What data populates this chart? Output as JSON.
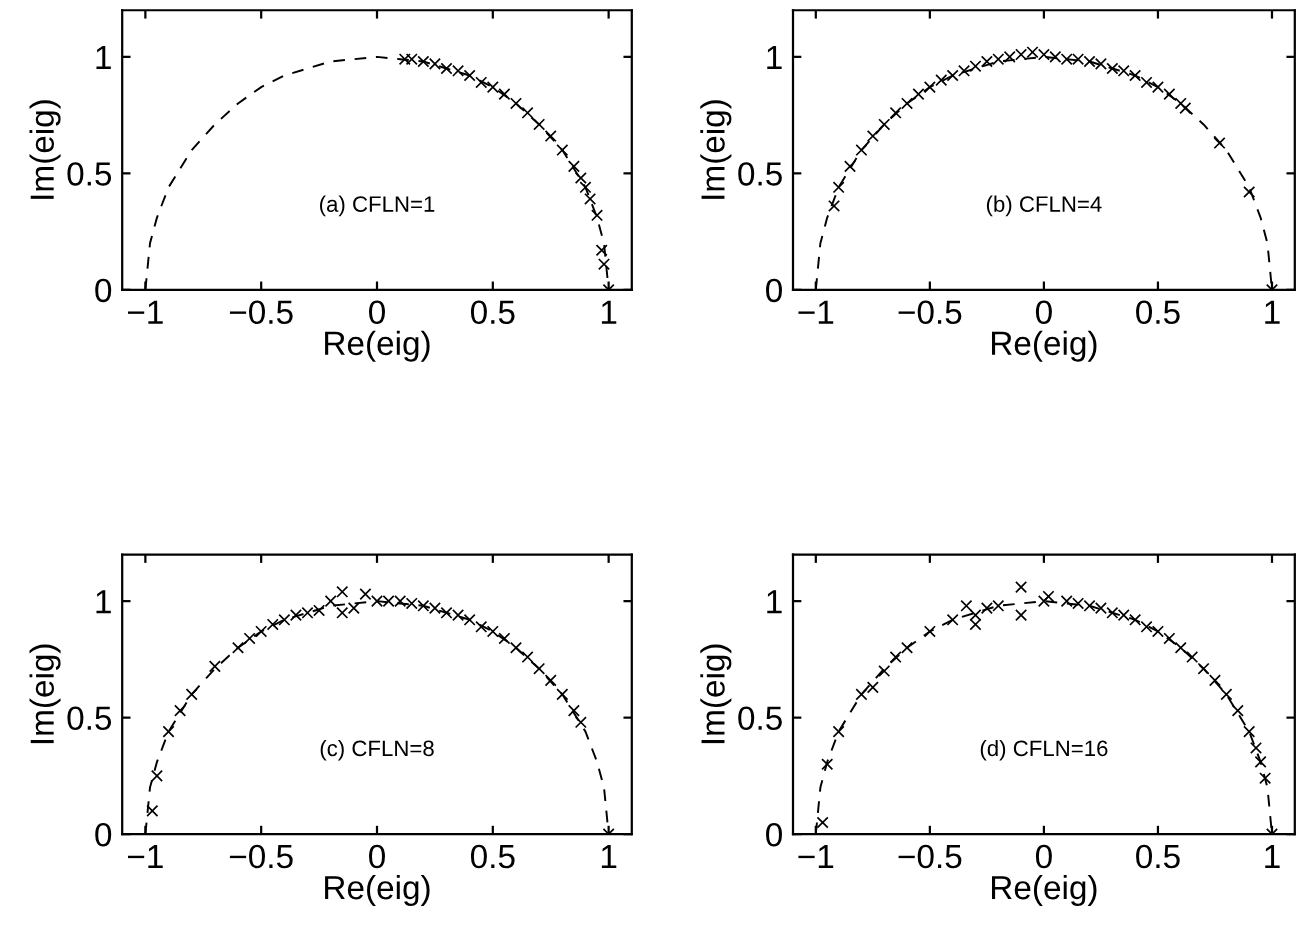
{
  "chart_data": [
    {
      "type": "scatter",
      "xlabel": "Re(eig)",
      "ylabel": "Im(eig)",
      "annotations": [
        "(a) CFLN=1"
      ],
      "xlim": [
        -1.1,
        1.1
      ],
      "ylim": [
        0,
        1.2
      ],
      "xticks": [
        -1,
        -0.5,
        0,
        0.5,
        1
      ],
      "yticks": [
        0,
        0.5,
        1
      ],
      "grid": false,
      "series": [
        {
          "type": "line",
          "line_style": "dashed",
          "marker": "none",
          "color": "#000000",
          "x": [
            -1,
            -0.98,
            -0.95,
            -0.9,
            -0.8,
            -0.7,
            -0.6,
            -0.5,
            -0.4,
            -0.3,
            -0.2,
            -0.1,
            0,
            0.1,
            0.2,
            0.3,
            0.4,
            0.5,
            0.6,
            0.7,
            0.8,
            0.9,
            0.95,
            0.98,
            1
          ],
          "values": [
            0,
            0.2,
            0.31,
            0.44,
            0.6,
            0.71,
            0.8,
            0.87,
            0.92,
            0.95,
            0.98,
            0.99,
            1,
            0.99,
            0.98,
            0.95,
            0.92,
            0.87,
            0.8,
            0.71,
            0.6,
            0.44,
            0.31,
            0.2,
            0
          ]
        },
        {
          "marker": "cross",
          "color": "#000000",
          "x": [
            0.12,
            0.15,
            0.2,
            0.25,
            0.3,
            0.35,
            0.4,
            0.45,
            0.5,
            0.55,
            0.6,
            0.65,
            0.7,
            0.75,
            0.8,
            0.85,
            0.88,
            0.9,
            0.92,
            0.95,
            0.97,
            0.98,
            1
          ],
          "values": [
            0.99,
            0.99,
            0.98,
            0.97,
            0.95,
            0.94,
            0.92,
            0.89,
            0.87,
            0.84,
            0.8,
            0.76,
            0.71,
            0.66,
            0.6,
            0.53,
            0.48,
            0.44,
            0.39,
            0.32,
            0.17,
            0.11,
            0
          ]
        }
      ]
    },
    {
      "type": "scatter",
      "xlabel": "Re(eig)",
      "ylabel": "Im(eig)",
      "annotations": [
        "(b) CFLN=4"
      ],
      "xlim": [
        -1.1,
        1.1
      ],
      "ylim": [
        0,
        1.2
      ],
      "xticks": [
        -1,
        -0.5,
        0,
        0.5,
        1
      ],
      "yticks": [
        0,
        0.5,
        1
      ],
      "grid": false,
      "series": [
        {
          "type": "line",
          "line_style": "dashed",
          "marker": "none",
          "color": "#000000",
          "x": [
            -1,
            -0.98,
            -0.95,
            -0.9,
            -0.8,
            -0.7,
            -0.6,
            -0.5,
            -0.4,
            -0.3,
            -0.2,
            -0.1,
            0,
            0.1,
            0.2,
            0.3,
            0.4,
            0.5,
            0.6,
            0.7,
            0.8,
            0.9,
            0.95,
            0.98,
            1
          ],
          "values": [
            0,
            0.2,
            0.31,
            0.44,
            0.6,
            0.71,
            0.8,
            0.87,
            0.92,
            0.95,
            0.98,
            0.99,
            1,
            0.99,
            0.98,
            0.95,
            0.92,
            0.87,
            0.8,
            0.71,
            0.6,
            0.44,
            0.31,
            0.2,
            0
          ]
        },
        {
          "marker": "cross",
          "color": "#000000",
          "x": [
            -0.92,
            -0.9,
            -0.85,
            -0.8,
            -0.75,
            -0.7,
            -0.65,
            -0.6,
            -0.55,
            -0.5,
            -0.45,
            -0.4,
            -0.35,
            -0.3,
            -0.25,
            -0.2,
            -0.15,
            -0.1,
            -0.05,
            0,
            0.05,
            0.1,
            0.15,
            0.2,
            0.25,
            0.3,
            0.35,
            0.4,
            0.45,
            0.5,
            0.55,
            0.6,
            0.62,
            0.77,
            0.9,
            1
          ],
          "values": [
            0.36,
            0.44,
            0.53,
            0.6,
            0.66,
            0.71,
            0.76,
            0.8,
            0.84,
            0.87,
            0.9,
            0.92,
            0.94,
            0.96,
            0.98,
            0.99,
            1,
            1.01,
            1.02,
            1.01,
            1,
            0.99,
            0.99,
            0.98,
            0.97,
            0.95,
            0.94,
            0.92,
            0.89,
            0.87,
            0.84,
            0.8,
            0.78,
            0.63,
            0.42,
            0
          ]
        }
      ]
    },
    {
      "type": "scatter",
      "xlabel": "Re(eig)",
      "ylabel": "Im(eig)",
      "annotations": [
        "(c) CFLN=8"
      ],
      "xlim": [
        -1.1,
        1.1
      ],
      "ylim": [
        0,
        1.2
      ],
      "xticks": [
        -1,
        -0.5,
        0,
        0.5,
        1
      ],
      "yticks": [
        0,
        0.5,
        1
      ],
      "grid": false,
      "series": [
        {
          "type": "line",
          "line_style": "dashed",
          "marker": "none",
          "color": "#000000",
          "x": [
            -1,
            -0.98,
            -0.95,
            -0.9,
            -0.8,
            -0.7,
            -0.6,
            -0.5,
            -0.4,
            -0.3,
            -0.2,
            -0.1,
            0,
            0.1,
            0.2,
            0.3,
            0.4,
            0.5,
            0.6,
            0.7,
            0.8,
            0.9,
            0.95,
            0.98,
            1
          ],
          "values": [
            0,
            0.2,
            0.31,
            0.44,
            0.6,
            0.71,
            0.8,
            0.87,
            0.92,
            0.95,
            0.98,
            0.99,
            1,
            0.99,
            0.98,
            0.95,
            0.92,
            0.87,
            0.8,
            0.71,
            0.6,
            0.44,
            0.31,
            0.2,
            0
          ]
        },
        {
          "marker": "cross",
          "color": "#000000",
          "x": [
            -0.97,
            -0.95,
            -0.9,
            -0.85,
            -0.8,
            -0.7,
            -0.6,
            -0.55,
            -0.5,
            -0.45,
            -0.4,
            -0.35,
            -0.3,
            -0.25,
            -0.2,
            -0.15,
            -0.15,
            -0.1,
            -0.05,
            0,
            0.05,
            0.1,
            0.15,
            0.2,
            0.25,
            0.3,
            0.35,
            0.4,
            0.45,
            0.5,
            0.55,
            0.6,
            0.65,
            0.7,
            0.75,
            0.8,
            0.85,
            0.88,
            1
          ],
          "values": [
            0.1,
            0.25,
            0.44,
            0.53,
            0.6,
            0.72,
            0.8,
            0.84,
            0.87,
            0.9,
            0.92,
            0.94,
            0.95,
            0.96,
            1,
            1.04,
            0.95,
            0.97,
            1.03,
            1,
            1,
            1,
            0.99,
            0.98,
            0.97,
            0.95,
            0.94,
            0.92,
            0.89,
            0.87,
            0.84,
            0.8,
            0.76,
            0.71,
            0.66,
            0.6,
            0.53,
            0.48,
            0
          ]
        }
      ]
    },
    {
      "type": "scatter",
      "xlabel": "Re(eig)",
      "ylabel": "Im(eig)",
      "annotations": [
        "(d) CFLN=16"
      ],
      "xlim": [
        -1.1,
        1.1
      ],
      "ylim": [
        0,
        1.2
      ],
      "xticks": [
        -1,
        -0.5,
        0,
        0.5,
        1
      ],
      "yticks": [
        0,
        0.5,
        1
      ],
      "grid": false,
      "series": [
        {
          "type": "line",
          "line_style": "dashed",
          "marker": "none",
          "color": "#000000",
          "x": [
            -1,
            -0.98,
            -0.95,
            -0.9,
            -0.8,
            -0.7,
            -0.6,
            -0.5,
            -0.4,
            -0.3,
            -0.2,
            -0.1,
            0,
            0.1,
            0.2,
            0.3,
            0.4,
            0.5,
            0.6,
            0.7,
            0.8,
            0.9,
            0.95,
            0.98,
            1
          ],
          "values": [
            0,
            0.2,
            0.31,
            0.44,
            0.6,
            0.71,
            0.8,
            0.87,
            0.92,
            0.95,
            0.98,
            0.99,
            1,
            0.99,
            0.98,
            0.95,
            0.92,
            0.87,
            0.8,
            0.71,
            0.6,
            0.44,
            0.31,
            0.2,
            0
          ]
        },
        {
          "marker": "cross",
          "color": "#000000",
          "x": [
            -0.97,
            -0.95,
            -0.9,
            -0.8,
            -0.75,
            -0.7,
            -0.65,
            -0.6,
            -0.5,
            -0.4,
            -0.34,
            -0.3,
            -0.3,
            -0.25,
            -0.2,
            -0.1,
            -0.1,
            0,
            0.02,
            0.1,
            0.15,
            0.2,
            0.25,
            0.3,
            0.35,
            0.4,
            0.45,
            0.5,
            0.55,
            0.6,
            0.65,
            0.7,
            0.75,
            0.8,
            0.85,
            0.9,
            0.93,
            0.95,
            0.97,
            1
          ],
          "values": [
            0.05,
            0.3,
            0.44,
            0.6,
            0.63,
            0.7,
            0.76,
            0.8,
            0.87,
            0.92,
            0.98,
            0.94,
            0.9,
            0.97,
            0.98,
            1.06,
            0.94,
            1,
            1.02,
            1,
            0.99,
            0.98,
            0.97,
            0.95,
            0.94,
            0.92,
            0.89,
            0.87,
            0.84,
            0.8,
            0.76,
            0.71,
            0.66,
            0.6,
            0.53,
            0.44,
            0.37,
            0.31,
            0.24,
            0
          ]
        }
      ]
    }
  ]
}
